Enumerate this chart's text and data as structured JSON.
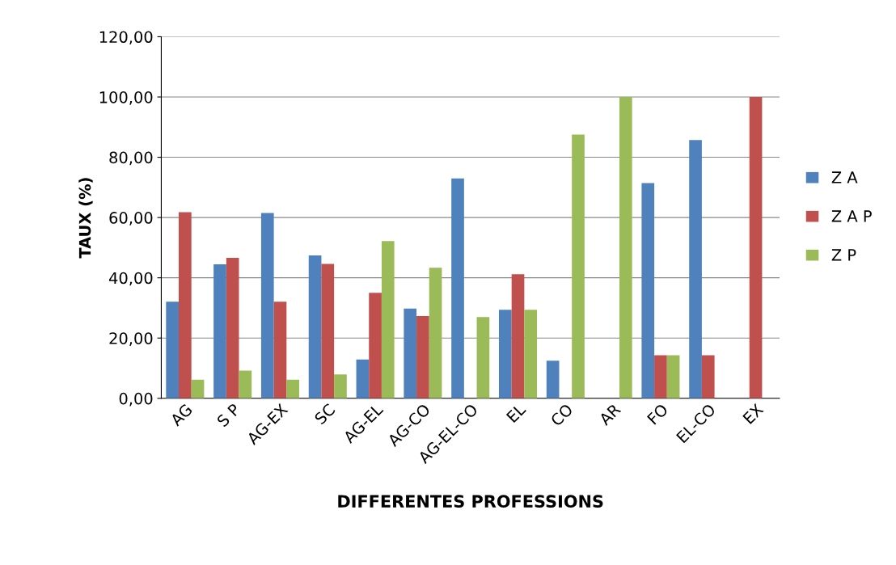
{
  "chart_data": {
    "type": "bar",
    "xlabel": "DIFFERENTES PROFESSIONS",
    "ylabel": "TAUX (%)",
    "categories": [
      "AG",
      "S P",
      "AG-EX",
      "SC",
      "AG-EL",
      "AG-CO",
      "AG-EL-CO",
      "EL",
      "CO",
      "AR",
      "FO",
      "EL-CO",
      "EX"
    ],
    "series": [
      {
        "name": "Z A",
        "color": "#4f81bd",
        "values": [
          32.1,
          44.5,
          61.5,
          47.4,
          12.9,
          29.8,
          73.0,
          29.4,
          12.5,
          0,
          71.4,
          85.7,
          0
        ]
      },
      {
        "name": "Z A P",
        "color": "#c0504d",
        "values": [
          61.8,
          46.6,
          32.1,
          44.6,
          35.0,
          27.3,
          0,
          41.2,
          0,
          0,
          14.3,
          14.3,
          100
        ]
      },
      {
        "name": "Z P",
        "color": "#9bbb59",
        "values": [
          6.2,
          9.2,
          6.2,
          7.9,
          52.2,
          43.3,
          27.0,
          29.4,
          87.5,
          100,
          14.3,
          0,
          0
        ]
      }
    ],
    "ylim": [
      0,
      120
    ],
    "yticks": [
      {
        "value": 0,
        "label": "0,00"
      },
      {
        "value": 20,
        "label": "20,00"
      },
      {
        "value": 40,
        "label": "40,00"
      },
      {
        "value": 60,
        "label": "60,00"
      },
      {
        "value": 80,
        "label": "80,00"
      },
      {
        "value": 100,
        "label": "100,00"
      },
      {
        "value": 120,
        "label": "120,00"
      }
    ],
    "grid": "y",
    "legend": "right"
  }
}
